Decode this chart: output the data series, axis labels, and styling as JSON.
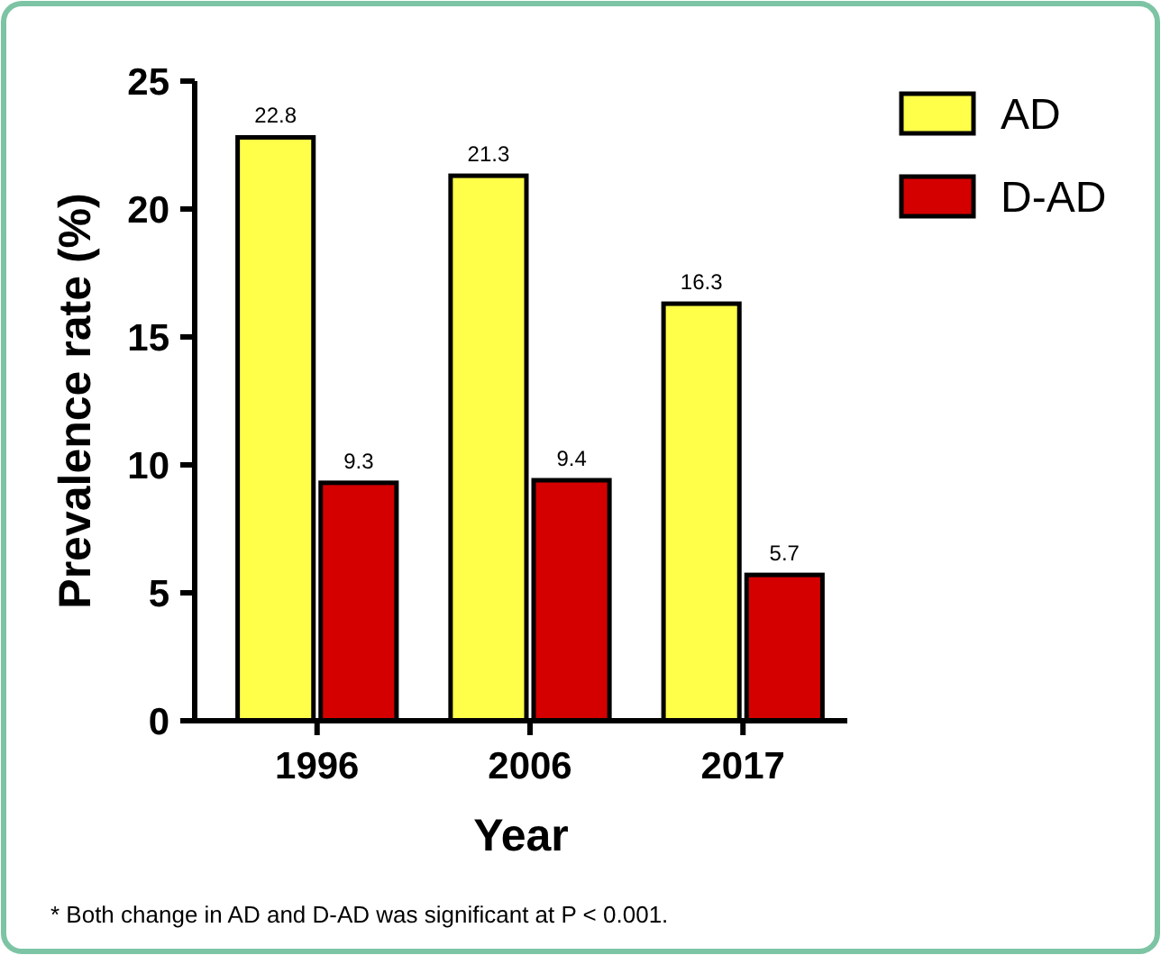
{
  "chart_data": {
    "type": "bar",
    "categories": [
      "1996",
      "2006",
      "2017"
    ],
    "series": [
      {
        "name": "AD",
        "color": "#ffff4a",
        "values": [
          22.8,
          21.3,
          16.3
        ]
      },
      {
        "name": "D-AD",
        "color": "#d40000",
        "values": [
          9.3,
          9.4,
          5.7
        ]
      }
    ],
    "xlabel": "Year",
    "ylabel": "Prevalence rate (%)",
    "ylim": [
      0,
      25
    ],
    "yticks": [
      0,
      5,
      10,
      15,
      20,
      25
    ],
    "data_labels": true,
    "grid": false,
    "legend": "top right",
    "annotations": [
      "* Both change in AD and D-AD was significant at P < 0.001."
    ]
  }
}
